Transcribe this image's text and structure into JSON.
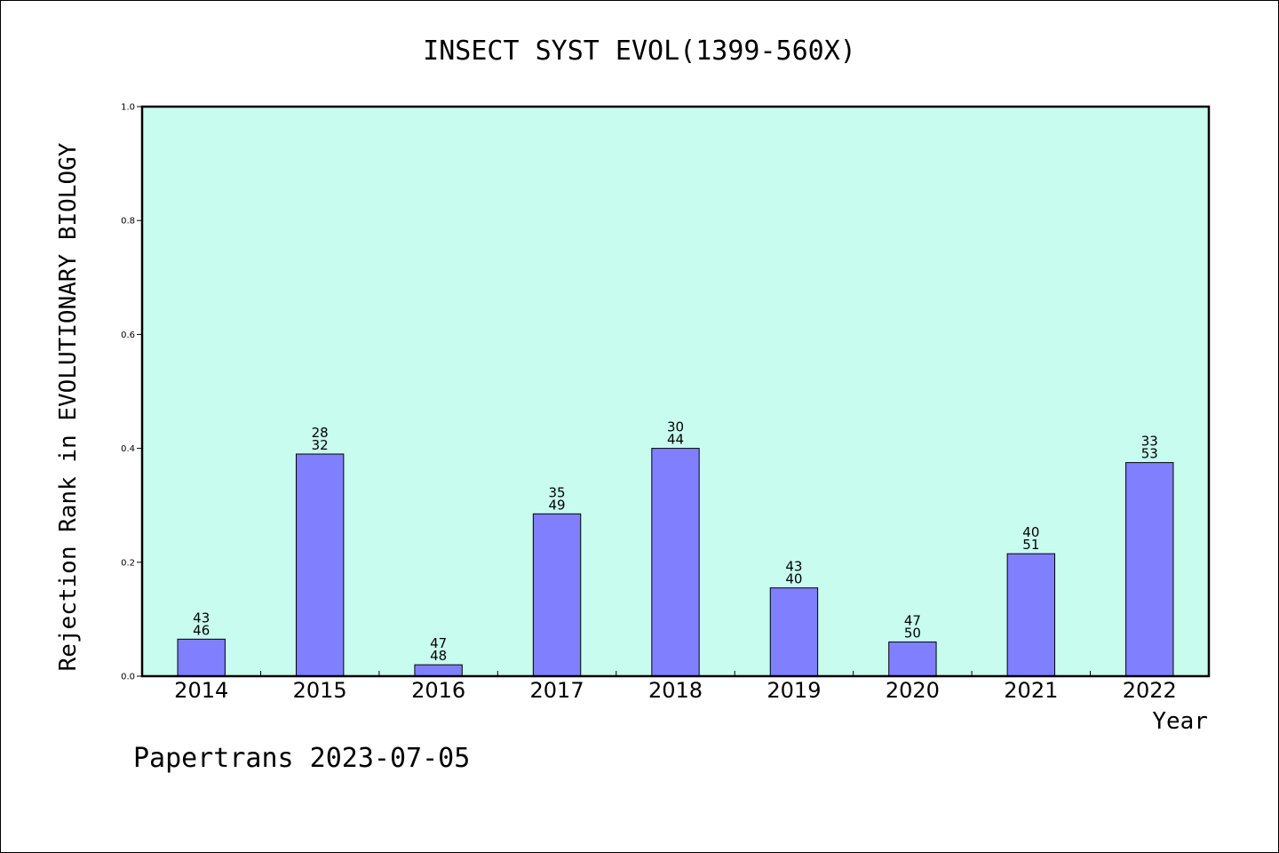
{
  "chart_data": {
    "type": "bar",
    "title": "INSECT SYST EVOL(1399-560X)",
    "xlabel": "Year",
    "ylabel": "Rejection Rank in EVOLUTIONARY BIOLOGY",
    "ylim": [
      0,
      1.0
    ],
    "yticks": [
      "0.0",
      "0.2",
      "0.4",
      "0.6",
      "0.8",
      "1.0"
    ],
    "categories": [
      "2014",
      "2015",
      "2016",
      "2017",
      "2018",
      "2019",
      "2020",
      "2021",
      "2022"
    ],
    "values": [
      0.065,
      0.39,
      0.02,
      0.285,
      0.4,
      0.155,
      0.06,
      0.215,
      0.375
    ],
    "labels_top": [
      "43",
      "28",
      "47",
      "35",
      "30",
      "43",
      "47",
      "40",
      "33"
    ],
    "labels_bottom": [
      "46",
      "32",
      "48",
      "49",
      "44",
      "40",
      "50",
      "51",
      "53"
    ],
    "grid": false,
    "colors": {
      "plot_bg": "#c8fcee",
      "bar": "#8080ff",
      "axis": "#000000"
    }
  },
  "footer": "Papertrans 2023-07-05"
}
